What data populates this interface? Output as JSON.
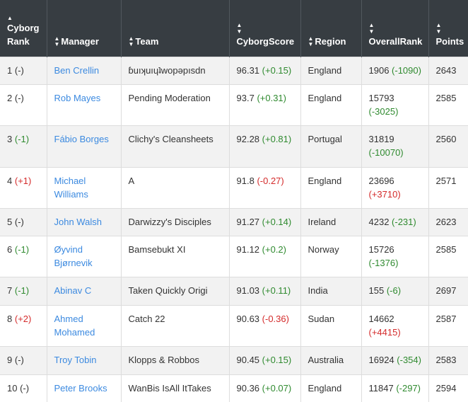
{
  "headers": {
    "rank": "Cyborg Rank",
    "manager": "Manager",
    "team": "Team",
    "score": "CyborgScore",
    "region": "Region",
    "overall": "OverallRank",
    "points": "Points"
  },
  "colors": {
    "header_bg": "#373d42",
    "link": "#3c8ae0",
    "up": "#2f8a2f",
    "down": "#d42b2b"
  },
  "icons": {
    "sort": "sort-arrows-icon",
    "sort_up": "sort-up-icon"
  },
  "rows": [
    {
      "rank": "1",
      "rank_change": "(-)",
      "rank_change_dir": "neu",
      "manager": "Ben Crellin",
      "team": "ɓuıʞuıɥʇwopǝpısdn",
      "score": "96.31",
      "score_change": "(+0.15)",
      "score_dir": "pos",
      "region": "England",
      "overall": "1906",
      "overall_change": "(-1090)",
      "overall_dir": "pos",
      "points": "2643"
    },
    {
      "rank": "2",
      "rank_change": "(-)",
      "rank_change_dir": "neu",
      "manager": "Rob Mayes",
      "team": "Pending Moderation",
      "score": "93.7",
      "score_change": "(+0.31)",
      "score_dir": "pos",
      "region": "England",
      "overall": "15793",
      "overall_change": "(-3025)",
      "overall_dir": "pos",
      "points": "2585"
    },
    {
      "rank": "3",
      "rank_change": "(-1)",
      "rank_change_dir": "pos",
      "manager": "Fábio Borges",
      "team": "Clichy's Cleansheets",
      "score": "92.28",
      "score_change": "(+0.81)",
      "score_dir": "pos",
      "region": "Portugal",
      "overall": "31819",
      "overall_change": "(-10070)",
      "overall_dir": "pos",
      "points": "2560"
    },
    {
      "rank": "4",
      "rank_change": "(+1)",
      "rank_change_dir": "neg",
      "manager": "Michael Williams",
      "team": "A",
      "score": "91.8",
      "score_change": "(-0.27)",
      "score_dir": "neg",
      "region": "England",
      "overall": "23696",
      "overall_change": "(+3710)",
      "overall_dir": "neg",
      "points": "2571"
    },
    {
      "rank": "5",
      "rank_change": "(-)",
      "rank_change_dir": "neu",
      "manager": "John Walsh",
      "team": "Darwizzy's Disciples",
      "score": "91.27",
      "score_change": "(+0.14)",
      "score_dir": "pos",
      "region": "Ireland",
      "overall": "4232",
      "overall_change": "(-231)",
      "overall_dir": "pos",
      "points": "2623"
    },
    {
      "rank": "6",
      "rank_change": "(-1)",
      "rank_change_dir": "pos",
      "manager": "Øyvind Bjørnevik",
      "team": "Bamsebukt XI",
      "score": "91.12",
      "score_change": "(+0.2)",
      "score_dir": "pos",
      "region": "Norway",
      "overall": "15726",
      "overall_change": "(-1376)",
      "overall_dir": "pos",
      "points": "2585"
    },
    {
      "rank": "7",
      "rank_change": "(-1)",
      "rank_change_dir": "pos",
      "manager": "Abinav C",
      "team": "Taken Quickly Origi",
      "score": "91.03",
      "score_change": "(+0.11)",
      "score_dir": "pos",
      "region": "India",
      "overall": "155",
      "overall_change": "(-6)",
      "overall_dir": "pos",
      "points": "2697"
    },
    {
      "rank": "8",
      "rank_change": "(+2)",
      "rank_change_dir": "neg",
      "manager": "Ahmed Mohamed",
      "team": "Catch 22",
      "score": "90.63",
      "score_change": "(-0.36)",
      "score_dir": "neg",
      "region": "Sudan",
      "overall": "14662",
      "overall_change": "(+4415)",
      "overall_dir": "neg",
      "points": "2587"
    },
    {
      "rank": "9",
      "rank_change": "(-)",
      "rank_change_dir": "neu",
      "manager": "Troy Tobin",
      "team": "Klopps & Robbos",
      "score": "90.45",
      "score_change": "(+0.15)",
      "score_dir": "pos",
      "region": "Australia",
      "overall": "16924",
      "overall_change": "(-354)",
      "overall_dir": "pos",
      "points": "2583"
    },
    {
      "rank": "10",
      "rank_change": "(-)",
      "rank_change_dir": "neu",
      "manager": "Peter Brooks",
      "team": "WanBis IsAll ItTakes",
      "score": "90.36",
      "score_change": "(+0.07)",
      "score_dir": "pos",
      "region": "England",
      "overall": "11847",
      "overall_change": "(-297)",
      "overall_dir": "pos",
      "points": "2594"
    }
  ]
}
